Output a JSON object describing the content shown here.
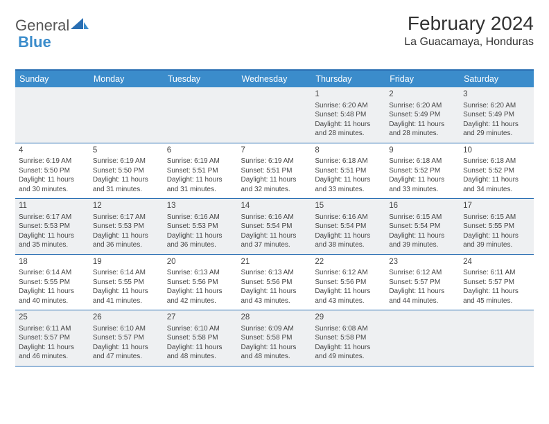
{
  "branding": {
    "logo_text_1": "General",
    "logo_text_2": "Blue",
    "brand_color": "#3b8ccb",
    "shape_color": "#2a6fb3"
  },
  "header": {
    "title": "February 2024",
    "location": "La Guacamaya, Honduras"
  },
  "colors": {
    "header_row_bg": "#3b8ccb",
    "header_row_text": "#ffffff",
    "grid_line": "#2a6fb3",
    "alt_row_bg": "#eef0f2",
    "text": "#444444"
  },
  "weekdays": [
    "Sunday",
    "Monday",
    "Tuesday",
    "Wednesday",
    "Thursday",
    "Friday",
    "Saturday"
  ],
  "weeks": [
    [
      null,
      null,
      null,
      null,
      {
        "day": "1",
        "sunrise": "Sunrise: 6:20 AM",
        "sunset": "Sunset: 5:48 PM",
        "daylight": "Daylight: 11 hours and 28 minutes."
      },
      {
        "day": "2",
        "sunrise": "Sunrise: 6:20 AM",
        "sunset": "Sunset: 5:49 PM",
        "daylight": "Daylight: 11 hours and 28 minutes."
      },
      {
        "day": "3",
        "sunrise": "Sunrise: 6:20 AM",
        "sunset": "Sunset: 5:49 PM",
        "daylight": "Daylight: 11 hours and 29 minutes."
      }
    ],
    [
      {
        "day": "4",
        "sunrise": "Sunrise: 6:19 AM",
        "sunset": "Sunset: 5:50 PM",
        "daylight": "Daylight: 11 hours and 30 minutes."
      },
      {
        "day": "5",
        "sunrise": "Sunrise: 6:19 AM",
        "sunset": "Sunset: 5:50 PM",
        "daylight": "Daylight: 11 hours and 31 minutes."
      },
      {
        "day": "6",
        "sunrise": "Sunrise: 6:19 AM",
        "sunset": "Sunset: 5:51 PM",
        "daylight": "Daylight: 11 hours and 31 minutes."
      },
      {
        "day": "7",
        "sunrise": "Sunrise: 6:19 AM",
        "sunset": "Sunset: 5:51 PM",
        "daylight": "Daylight: 11 hours and 32 minutes."
      },
      {
        "day": "8",
        "sunrise": "Sunrise: 6:18 AM",
        "sunset": "Sunset: 5:51 PM",
        "daylight": "Daylight: 11 hours and 33 minutes."
      },
      {
        "day": "9",
        "sunrise": "Sunrise: 6:18 AM",
        "sunset": "Sunset: 5:52 PM",
        "daylight": "Daylight: 11 hours and 33 minutes."
      },
      {
        "day": "10",
        "sunrise": "Sunrise: 6:18 AM",
        "sunset": "Sunset: 5:52 PM",
        "daylight": "Daylight: 11 hours and 34 minutes."
      }
    ],
    [
      {
        "day": "11",
        "sunrise": "Sunrise: 6:17 AM",
        "sunset": "Sunset: 5:53 PM",
        "daylight": "Daylight: 11 hours and 35 minutes."
      },
      {
        "day": "12",
        "sunrise": "Sunrise: 6:17 AM",
        "sunset": "Sunset: 5:53 PM",
        "daylight": "Daylight: 11 hours and 36 minutes."
      },
      {
        "day": "13",
        "sunrise": "Sunrise: 6:16 AM",
        "sunset": "Sunset: 5:53 PM",
        "daylight": "Daylight: 11 hours and 36 minutes."
      },
      {
        "day": "14",
        "sunrise": "Sunrise: 6:16 AM",
        "sunset": "Sunset: 5:54 PM",
        "daylight": "Daylight: 11 hours and 37 minutes."
      },
      {
        "day": "15",
        "sunrise": "Sunrise: 6:16 AM",
        "sunset": "Sunset: 5:54 PM",
        "daylight": "Daylight: 11 hours and 38 minutes."
      },
      {
        "day": "16",
        "sunrise": "Sunrise: 6:15 AM",
        "sunset": "Sunset: 5:54 PM",
        "daylight": "Daylight: 11 hours and 39 minutes."
      },
      {
        "day": "17",
        "sunrise": "Sunrise: 6:15 AM",
        "sunset": "Sunset: 5:55 PM",
        "daylight": "Daylight: 11 hours and 39 minutes."
      }
    ],
    [
      {
        "day": "18",
        "sunrise": "Sunrise: 6:14 AM",
        "sunset": "Sunset: 5:55 PM",
        "daylight": "Daylight: 11 hours and 40 minutes."
      },
      {
        "day": "19",
        "sunrise": "Sunrise: 6:14 AM",
        "sunset": "Sunset: 5:55 PM",
        "daylight": "Daylight: 11 hours and 41 minutes."
      },
      {
        "day": "20",
        "sunrise": "Sunrise: 6:13 AM",
        "sunset": "Sunset: 5:56 PM",
        "daylight": "Daylight: 11 hours and 42 minutes."
      },
      {
        "day": "21",
        "sunrise": "Sunrise: 6:13 AM",
        "sunset": "Sunset: 5:56 PM",
        "daylight": "Daylight: 11 hours and 43 minutes."
      },
      {
        "day": "22",
        "sunrise": "Sunrise: 6:12 AM",
        "sunset": "Sunset: 5:56 PM",
        "daylight": "Daylight: 11 hours and 43 minutes."
      },
      {
        "day": "23",
        "sunrise": "Sunrise: 6:12 AM",
        "sunset": "Sunset: 5:57 PM",
        "daylight": "Daylight: 11 hours and 44 minutes."
      },
      {
        "day": "24",
        "sunrise": "Sunrise: 6:11 AM",
        "sunset": "Sunset: 5:57 PM",
        "daylight": "Daylight: 11 hours and 45 minutes."
      }
    ],
    [
      {
        "day": "25",
        "sunrise": "Sunrise: 6:11 AM",
        "sunset": "Sunset: 5:57 PM",
        "daylight": "Daylight: 11 hours and 46 minutes."
      },
      {
        "day": "26",
        "sunrise": "Sunrise: 6:10 AM",
        "sunset": "Sunset: 5:57 PM",
        "daylight": "Daylight: 11 hours and 47 minutes."
      },
      {
        "day": "27",
        "sunrise": "Sunrise: 6:10 AM",
        "sunset": "Sunset: 5:58 PM",
        "daylight": "Daylight: 11 hours and 48 minutes."
      },
      {
        "day": "28",
        "sunrise": "Sunrise: 6:09 AM",
        "sunset": "Sunset: 5:58 PM",
        "daylight": "Daylight: 11 hours and 48 minutes."
      },
      {
        "day": "29",
        "sunrise": "Sunrise: 6:08 AM",
        "sunset": "Sunset: 5:58 PM",
        "daylight": "Daylight: 11 hours and 49 minutes."
      },
      null,
      null
    ]
  ]
}
